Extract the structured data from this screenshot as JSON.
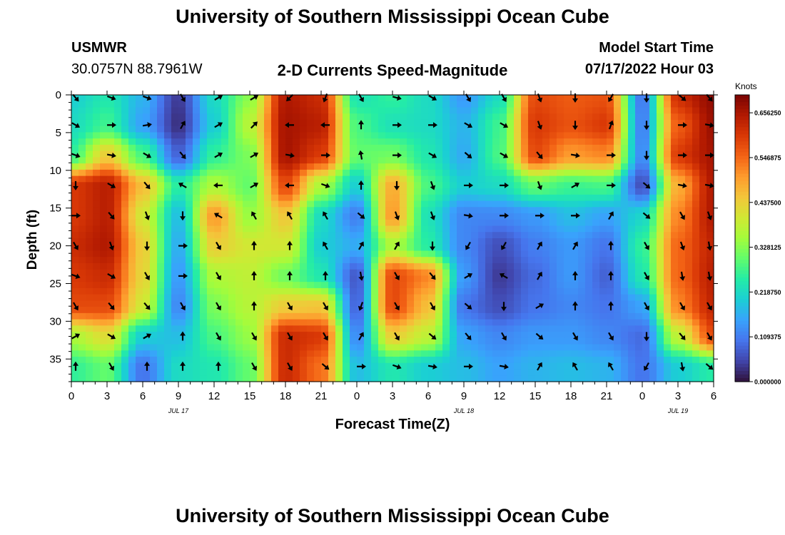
{
  "title": "University of Southern Mississippi Ocean Cube",
  "title_repeat": "University of Southern Mississippi Ocean Cube",
  "station": {
    "name": "USMWR",
    "coords": "30.0757N  88.7961W"
  },
  "model": {
    "label": "Model Start Time",
    "start": "07/17/2022 Hour 03"
  },
  "colorbar": {
    "unit": "Knots",
    "ticks": [
      "0.000000",
      "0.109375",
      "0.218750",
      "0.328125",
      "0.437500",
      "0.546875",
      "0.656250"
    ],
    "min": 0.0,
    "max": 0.7,
    "palette": [
      "#30123b",
      "#4145ab",
      "#4675ed",
      "#39a2fc",
      "#1bcfd4",
      "#24eca6",
      "#61fc6c",
      "#a4fc3b",
      "#d1e834",
      "#f3c63a",
      "#fe9b2d",
      "#f36315",
      "#d93806",
      "#b11901",
      "#7a0402"
    ]
  },
  "chart_data": {
    "type": "heatmap",
    "title": "2-D Currents Speed-Magnitude",
    "xlabel": "Forecast Time(Z)",
    "ylabel": "Depth (ft)",
    "x_tick_labels": [
      "0",
      "3",
      "6",
      "9",
      "12",
      "15",
      "18",
      "21",
      "0",
      "3",
      "6",
      "9",
      "12",
      "15",
      "18",
      "21",
      "0",
      "3",
      "6"
    ],
    "date_labels": [
      {
        "label": "JUL 17",
        "hour_index": 3
      },
      {
        "label": "JUL 18",
        "hour_index": 11
      },
      {
        "label": "JUL 19",
        "hour_index": 17
      }
    ],
    "xlim": [
      0,
      54
    ],
    "y_ticks": [
      0,
      5,
      10,
      15,
      20,
      25,
      30,
      35
    ],
    "ylim": [
      0,
      38
    ],
    "y_inverted": true,
    "columns_hours": [
      0,
      3,
      6,
      9,
      12,
      15,
      18,
      21,
      24,
      27,
      30,
      33,
      36,
      39,
      42,
      45,
      48,
      51,
      54
    ],
    "rows_depth_ft": [
      0,
      4,
      8,
      12,
      16,
      20,
      24,
      28,
      32,
      36
    ],
    "speed_knots": [
      [
        0.2,
        0.24,
        0.17,
        0.04,
        0.22,
        0.33,
        0.65,
        0.62,
        0.23,
        0.26,
        0.22,
        0.14,
        0.22,
        0.58,
        0.56,
        0.57,
        0.1,
        0.62,
        0.68
      ],
      [
        0.22,
        0.27,
        0.15,
        0.03,
        0.2,
        0.37,
        0.66,
        0.64,
        0.28,
        0.23,
        0.22,
        0.17,
        0.27,
        0.6,
        0.57,
        0.6,
        0.11,
        0.56,
        0.67
      ],
      [
        0.26,
        0.44,
        0.28,
        0.08,
        0.26,
        0.32,
        0.66,
        0.6,
        0.3,
        0.31,
        0.24,
        0.16,
        0.28,
        0.58,
        0.5,
        0.52,
        0.12,
        0.6,
        0.66
      ],
      [
        0.6,
        0.64,
        0.46,
        0.25,
        0.36,
        0.3,
        0.58,
        0.36,
        0.2,
        0.48,
        0.28,
        0.2,
        0.22,
        0.3,
        0.27,
        0.28,
        0.06,
        0.48,
        0.65
      ],
      [
        0.6,
        0.64,
        0.4,
        0.18,
        0.5,
        0.34,
        0.45,
        0.22,
        0.11,
        0.5,
        0.23,
        0.12,
        0.12,
        0.14,
        0.18,
        0.15,
        0.21,
        0.52,
        0.65
      ],
      [
        0.62,
        0.65,
        0.44,
        0.16,
        0.44,
        0.4,
        0.4,
        0.2,
        0.16,
        0.36,
        0.25,
        0.12,
        0.06,
        0.11,
        0.14,
        0.1,
        0.26,
        0.55,
        0.63
      ],
      [
        0.6,
        0.62,
        0.43,
        0.14,
        0.36,
        0.38,
        0.31,
        0.24,
        0.07,
        0.58,
        0.52,
        0.14,
        0.04,
        0.09,
        0.14,
        0.08,
        0.24,
        0.55,
        0.64
      ],
      [
        0.58,
        0.58,
        0.4,
        0.12,
        0.32,
        0.37,
        0.44,
        0.45,
        0.08,
        0.58,
        0.46,
        0.1,
        0.06,
        0.1,
        0.12,
        0.1,
        0.15,
        0.52,
        0.63
      ],
      [
        0.36,
        0.42,
        0.2,
        0.18,
        0.28,
        0.34,
        0.62,
        0.6,
        0.12,
        0.44,
        0.38,
        0.15,
        0.12,
        0.14,
        0.14,
        0.12,
        0.09,
        0.38,
        0.58
      ],
      [
        0.26,
        0.3,
        0.1,
        0.22,
        0.24,
        0.3,
        0.62,
        0.54,
        0.18,
        0.24,
        0.2,
        0.18,
        0.15,
        0.17,
        0.18,
        0.17,
        0.1,
        0.2,
        0.25
      ]
    ],
    "direction_deg_to": [
      [
        140,
        110,
        110,
        150,
        60,
        60,
        225,
        200,
        150,
        105,
        120,
        150,
        150,
        160,
        180,
        210,
        180,
        130,
        140
      ],
      [
        120,
        90,
        80,
        30,
        60,
        45,
        270,
        270,
        0,
        90,
        90,
        120,
        120,
        160,
        180,
        20,
        180,
        90,
        100
      ],
      [
        110,
        100,
        120,
        140,
        60,
        60,
        100,
        90,
        350,
        90,
        120,
        130,
        120,
        140,
        100,
        90,
        180,
        90,
        90
      ],
      [
        180,
        120,
        140,
        300,
        270,
        60,
        270,
        110,
        0,
        180,
        160,
        90,
        90,
        160,
        60,
        90,
        130,
        100,
        100
      ],
      [
        90,
        140,
        160,
        180,
        300,
        330,
        330,
        330,
        130,
        160,
        160,
        100,
        90,
        90,
        90,
        30,
        130,
        150,
        160
      ],
      [
        150,
        160,
        180,
        90,
        150,
        0,
        0,
        330,
        30,
        30,
        180,
        210,
        210,
        30,
        30,
        0,
        150,
        160,
        170
      ],
      [
        110,
        120,
        150,
        90,
        150,
        0,
        0,
        0,
        170,
        150,
        140,
        60,
        300,
        30,
        0,
        0,
        150,
        170,
        170
      ],
      [
        150,
        140,
        140,
        150,
        150,
        0,
        150,
        150,
        200,
        150,
        150,
        130,
        180,
        60,
        0,
        0,
        150,
        150,
        150
      ],
      [
        60,
        120,
        60,
        0,
        150,
        150,
        150,
        150,
        30,
        150,
        130,
        140,
        150,
        130,
        150,
        150,
        180,
        140,
        150
      ],
      [
        0,
        150,
        0,
        0,
        0,
        150,
        150,
        130,
        90,
        110,
        100,
        90,
        100,
        30,
        330,
        330,
        210,
        170,
        130
      ]
    ]
  }
}
